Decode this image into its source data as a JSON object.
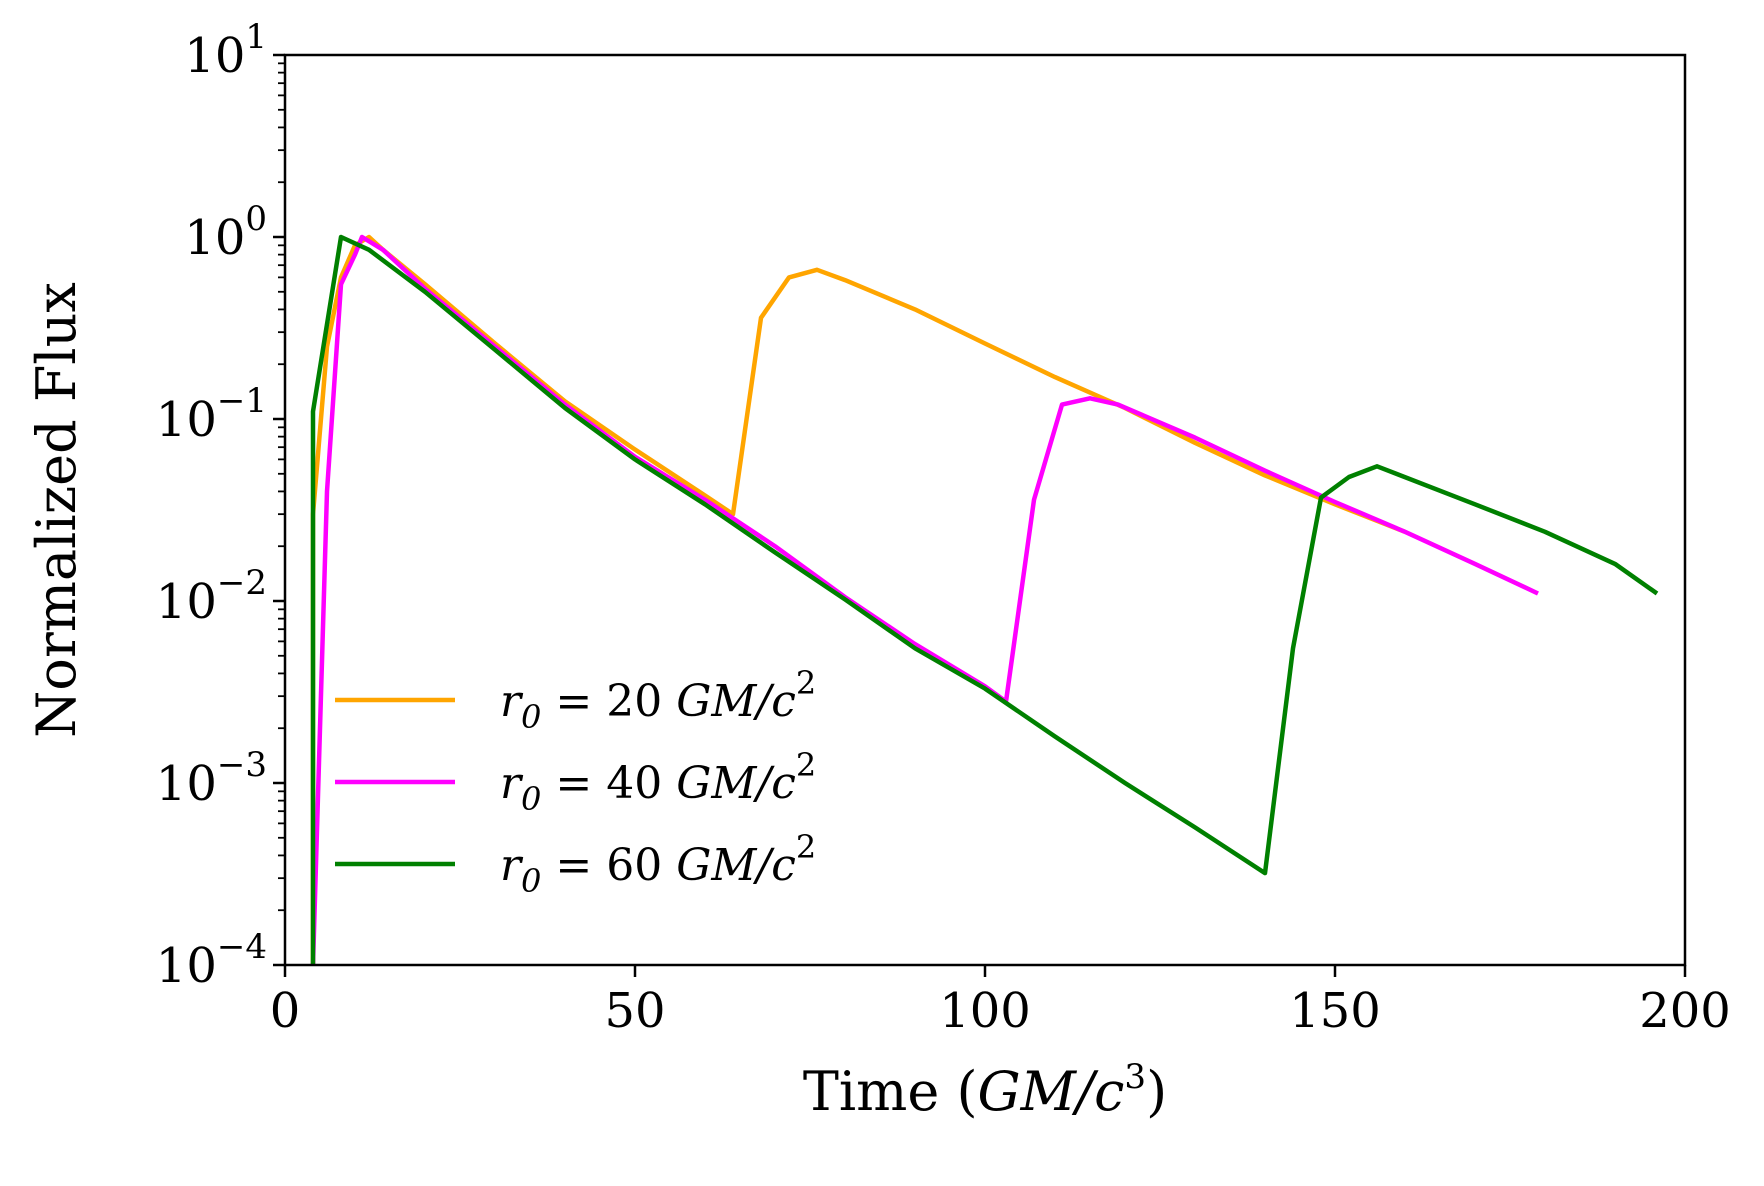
{
  "chart_data": {
    "type": "line",
    "title": "",
    "xlabel": "Time (GM/c³)",
    "xlabel_parts": {
      "prefix": "Time (",
      "italic": "GM/c",
      "sup": "3",
      "suffix": ")"
    },
    "ylabel": "Normalized Flux",
    "xlim": [
      0,
      200
    ],
    "ylim": [
      0.0001,
      10
    ],
    "yscale": "log",
    "grid": false,
    "legend_position": "lower-left",
    "x_ticks": [
      {
        "value": 0,
        "label": "0"
      },
      {
        "value": 50,
        "label": "50"
      },
      {
        "value": 100,
        "label": "100"
      },
      {
        "value": 150,
        "label": "150"
      },
      {
        "value": 200,
        "label": "200"
      }
    ],
    "y_ticks": [
      {
        "value": 0.0001,
        "base": "10",
        "exp": "−4"
      },
      {
        "value": 0.001,
        "base": "10",
        "exp": "−3"
      },
      {
        "value": 0.01,
        "base": "10",
        "exp": "−2"
      },
      {
        "value": 0.1,
        "base": "10",
        "exp": "−1"
      },
      {
        "value": 1,
        "base": "10",
        "exp": "0"
      },
      {
        "value": 10,
        "base": "10",
        "exp": "1"
      }
    ],
    "series": [
      {
        "name": "r0 = 20 GM/c²",
        "label_parts": {
          "var": "r",
          "sub": "0",
          "eq": " = ",
          "num": "20 ",
          "unit": "GM/c",
          "sup": "2"
        },
        "color": "#FFA500",
        "points": [
          [
            4,
            0.0001
          ],
          [
            4,
            0.03
          ],
          [
            6,
            0.25
          ],
          [
            8,
            0.6
          ],
          [
            10,
            0.9
          ],
          [
            12,
            1.0
          ],
          [
            14,
            0.85
          ],
          [
            20,
            0.55
          ],
          [
            30,
            0.26
          ],
          [
            40,
            0.125
          ],
          [
            50,
            0.068
          ],
          [
            60,
            0.038
          ],
          [
            64,
            0.03
          ],
          [
            68,
            0.36
          ],
          [
            72,
            0.6
          ],
          [
            76,
            0.66
          ],
          [
            80,
            0.58
          ],
          [
            90,
            0.4
          ],
          [
            100,
            0.26
          ],
          [
            110,
            0.17
          ],
          [
            120,
            0.115
          ],
          [
            130,
            0.074
          ],
          [
            140,
            0.049
          ],
          [
            150,
            0.034
          ],
          [
            160,
            0.024
          ]
        ]
      },
      {
        "name": "r0 = 40 GM/c²",
        "label_parts": {
          "var": "r",
          "sub": "0",
          "eq": " = ",
          "num": "40 ",
          "unit": "GM/c",
          "sup": "2"
        },
        "color": "#FF00FF",
        "points": [
          [
            4,
            0.0001
          ],
          [
            6,
            0.04
          ],
          [
            8,
            0.55
          ],
          [
            10,
            0.8
          ],
          [
            11,
            1.0
          ],
          [
            14,
            0.85
          ],
          [
            20,
            0.52
          ],
          [
            30,
            0.25
          ],
          [
            40,
            0.12
          ],
          [
            50,
            0.062
          ],
          [
            60,
            0.036
          ],
          [
            70,
            0.02
          ],
          [
            80,
            0.0105
          ],
          [
            90,
            0.0058
          ],
          [
            100,
            0.0034
          ],
          [
            103,
            0.0028
          ],
          [
            107,
            0.036
          ],
          [
            111,
            0.12
          ],
          [
            115,
            0.13
          ],
          [
            119,
            0.12
          ],
          [
            130,
            0.079
          ],
          [
            140,
            0.052
          ],
          [
            150,
            0.035
          ],
          [
            160,
            0.024
          ],
          [
            170,
            0.016
          ],
          [
            179,
            0.011
          ]
        ]
      },
      {
        "name": "r0 = 60 GM/c²",
        "label_parts": {
          "var": "r",
          "sub": "0",
          "eq": " = ",
          "num": "60 ",
          "unit": "GM/c",
          "sup": "2"
        },
        "color": "#008000",
        "points": [
          [
            4,
            0.0001
          ],
          [
            4,
            0.11
          ],
          [
            8,
            1.0
          ],
          [
            12,
            0.85
          ],
          [
            20,
            0.5
          ],
          [
            30,
            0.24
          ],
          [
            40,
            0.115
          ],
          [
            50,
            0.06
          ],
          [
            60,
            0.034
          ],
          [
            70,
            0.0185
          ],
          [
            80,
            0.0102
          ],
          [
            90,
            0.0055
          ],
          [
            100,
            0.0033
          ],
          [
            110,
            0.0018
          ],
          [
            120,
            0.001
          ],
          [
            130,
            0.00057
          ],
          [
            140,
            0.00032
          ],
          [
            144,
            0.0055
          ],
          [
            148,
            0.037
          ],
          [
            152,
            0.048
          ],
          [
            156,
            0.055
          ],
          [
            170,
            0.034
          ],
          [
            180,
            0.024
          ],
          [
            190,
            0.016
          ],
          [
            196,
            0.011
          ]
        ]
      }
    ]
  }
}
